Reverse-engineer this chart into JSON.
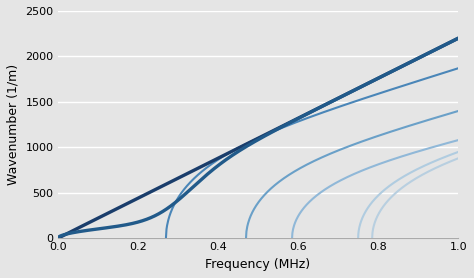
{
  "title": "",
  "xlabel": "Frequency (MHz)",
  "ylabel": "Wavenumber (1/m)",
  "xlim": [
    0,
    1.0
  ],
  "ylim": [
    0,
    2500
  ],
  "bg_color": "#e5e5e5",
  "xticks": [
    0,
    0.2,
    0.4,
    0.6,
    0.8,
    1.0
  ],
  "yticks": [
    0,
    500,
    1000,
    1500,
    2000,
    2500
  ],
  "colors": {
    "dark1": "#1a3d6b",
    "dark2": "#215a8a",
    "mid1": "#4a86b8",
    "mid2": "#6aa0c8",
    "light1": "#90b8d8",
    "light2": "#b0cce0",
    "light3": "#b8cfe0"
  },
  "lw_thick": 2.4,
  "lw_thin": 1.5
}
